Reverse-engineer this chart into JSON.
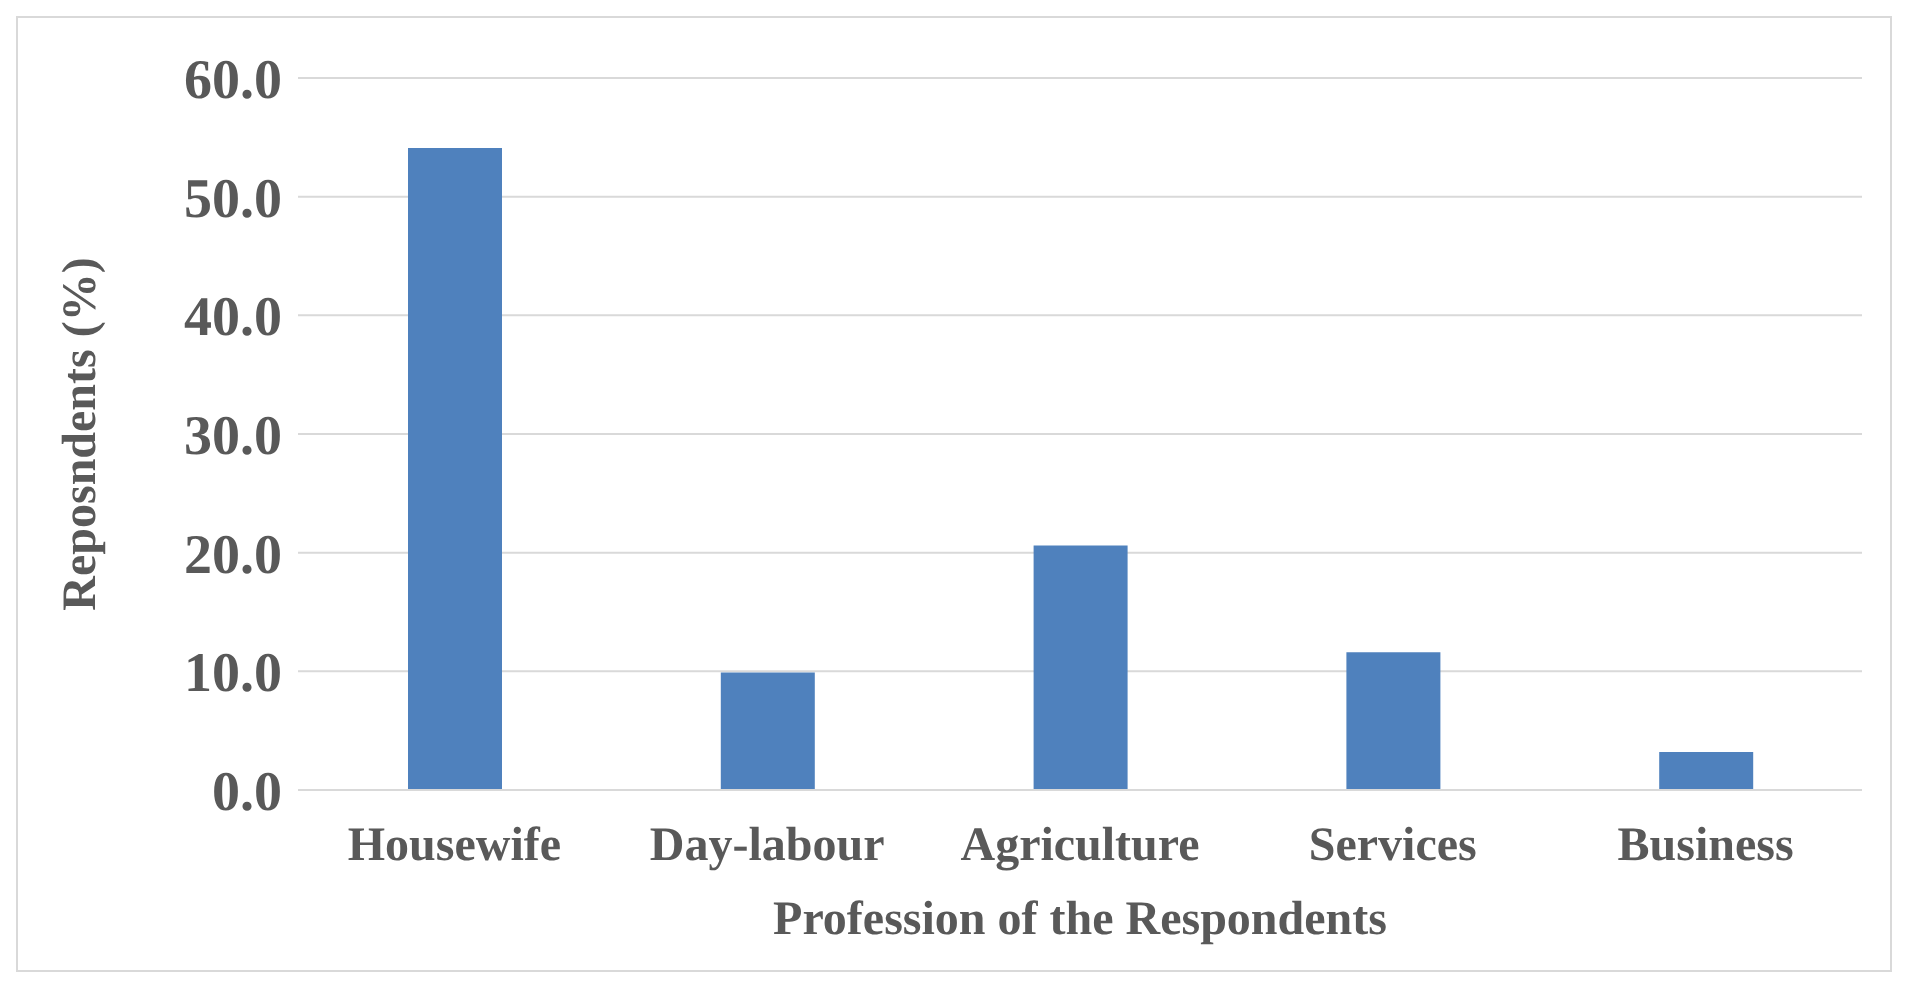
{
  "chart_data": {
    "type": "bar",
    "xlabel": "Profession of the Respondents",
    "ylabel": "Reposndents (%)",
    "categories": [
      "Housewife",
      "Day-labour",
      "Agriculture",
      "Services",
      "Business"
    ],
    "values": [
      54.1,
      9.9,
      20.6,
      11.6,
      3.2
    ],
    "color": "#4f81bd",
    "ylim": [
      0,
      60
    ],
    "yticks": [
      {
        "value": 0,
        "label": "0.0"
      },
      {
        "value": 10,
        "label": "10.0"
      },
      {
        "value": 20,
        "label": "20.0"
      },
      {
        "value": 30,
        "label": "30.0"
      },
      {
        "value": 40,
        "label": "40.0"
      },
      {
        "value": 50,
        "label": "50.0"
      },
      {
        "value": 60,
        "label": "60.0"
      }
    ],
    "grid": "y"
  }
}
